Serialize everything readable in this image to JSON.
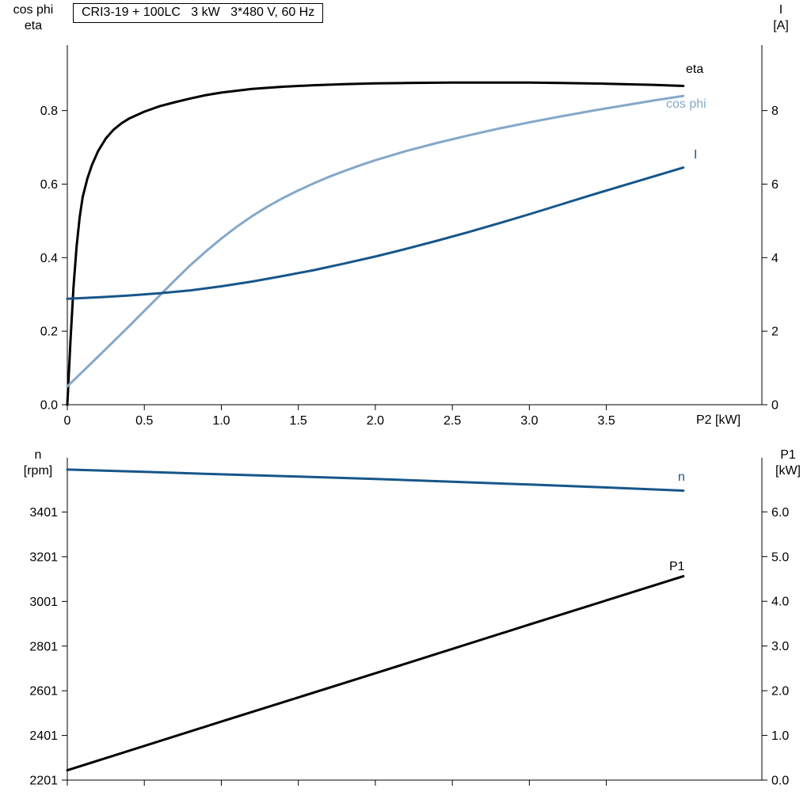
{
  "colors": {
    "black": "#000000",
    "dark_blue": "#17568a",
    "light_blue": "#85a8c9",
    "axis": "#000000",
    "background": "#ffffff"
  },
  "chart_data": [
    {
      "type": "line",
      "title": "CRI3-19 + 100LC   3 kW   3*480 V, 60 Hz",
      "x_label": "P2 [kW]",
      "x_range": [
        0,
        4.51
      ],
      "x_ticks": [
        0,
        0.5,
        1,
        1.5,
        2,
        2.5,
        3,
        3.5
      ],
      "x_tick_labels": [
        "0",
        "0.5",
        "1.0",
        "1.5",
        "2.0",
        "2.5",
        "3.0",
        "3.5"
      ],
      "grid": false,
      "legend_position": "labels-at-line-ends",
      "left_axis": {
        "label_lines": [
          "cos phi",
          "eta"
        ],
        "range": [
          0,
          0.978
        ],
        "tick_values": [
          0,
          0.2,
          0.4,
          0.6,
          0.8
        ],
        "tick_labels": [
          "0.0",
          "0.2",
          "0.4",
          "0.6",
          "0.8"
        ]
      },
      "right_axis": {
        "label_lines": [
          "I",
          "[A]"
        ],
        "range": [
          0,
          9.78
        ],
        "tick_values": [
          0,
          2,
          4,
          6,
          8
        ],
        "tick_labels": [
          "0",
          "2",
          "4",
          "6",
          "8"
        ]
      },
      "series": [
        {
          "name": "eta",
          "axis": "left",
          "color": "black",
          "points": [
            [
              0,
              0
            ],
            [
              0.02,
              0.17
            ],
            [
              0.04,
              0.32
            ],
            [
              0.06,
              0.43
            ],
            [
              0.08,
              0.51
            ],
            [
              0.1,
              0.565
            ],
            [
              0.13,
              0.615
            ],
            [
              0.16,
              0.652
            ],
            [
              0.2,
              0.69
            ],
            [
              0.25,
              0.724
            ],
            [
              0.3,
              0.748
            ],
            [
              0.35,
              0.765
            ],
            [
              0.4,
              0.778
            ],
            [
              0.5,
              0.797
            ],
            [
              0.6,
              0.812
            ],
            [
              0.7,
              0.823
            ],
            [
              0.8,
              0.833
            ],
            [
              0.9,
              0.842
            ],
            [
              1,
              0.849
            ],
            [
              1.2,
              0.859
            ],
            [
              1.4,
              0.865
            ],
            [
              1.6,
              0.869
            ],
            [
              1.8,
              0.872
            ],
            [
              2,
              0.874
            ],
            [
              2.2,
              0.875
            ],
            [
              2.5,
              0.876
            ],
            [
              2.8,
              0.876
            ],
            [
              3,
              0.876
            ],
            [
              3.2,
              0.875
            ],
            [
              3.5,
              0.873
            ],
            [
              3.8,
              0.87
            ],
            [
              4,
              0.867
            ]
          ]
        },
        {
          "name": "cos phi",
          "axis": "left",
          "color": "light_blue",
          "points": [
            [
              0,
              0.05
            ],
            [
              0.1,
              0.09
            ],
            [
              0.2,
              0.131
            ],
            [
              0.3,
              0.172
            ],
            [
              0.4,
              0.213
            ],
            [
              0.5,
              0.255
            ],
            [
              0.6,
              0.297
            ],
            [
              0.7,
              0.339
            ],
            [
              0.8,
              0.38
            ],
            [
              0.9,
              0.417
            ],
            [
              1,
              0.452
            ],
            [
              1.1,
              0.484
            ],
            [
              1.2,
              0.513
            ],
            [
              1.3,
              0.539
            ],
            [
              1.4,
              0.562
            ],
            [
              1.5,
              0.583
            ],
            [
              1.6,
              0.602
            ],
            [
              1.7,
              0.62
            ],
            [
              1.8,
              0.636
            ],
            [
              1.9,
              0.651
            ],
            [
              2,
              0.665
            ],
            [
              2.2,
              0.69
            ],
            [
              2.4,
              0.712
            ],
            [
              2.6,
              0.732
            ],
            [
              2.8,
              0.751
            ],
            [
              3,
              0.768
            ],
            [
              3.2,
              0.784
            ],
            [
              3.4,
              0.799
            ],
            [
              3.6,
              0.813
            ],
            [
              3.8,
              0.827
            ],
            [
              4,
              0.84
            ]
          ]
        },
        {
          "name": "I",
          "axis": "right",
          "color": "dark_blue",
          "points": [
            [
              0,
              2.88
            ],
            [
              0.2,
              2.92
            ],
            [
              0.4,
              2.97
            ],
            [
              0.6,
              3.03
            ],
            [
              0.8,
              3.11
            ],
            [
              1,
              3.22
            ],
            [
              1.2,
              3.35
            ],
            [
              1.4,
              3.5
            ],
            [
              1.6,
              3.66
            ],
            [
              1.8,
              3.84
            ],
            [
              2,
              4.03
            ],
            [
              2.2,
              4.24
            ],
            [
              2.4,
              4.46
            ],
            [
              2.6,
              4.69
            ],
            [
              2.8,
              4.93
            ],
            [
              3,
              5.18
            ],
            [
              3.2,
              5.44
            ],
            [
              3.4,
              5.7
            ],
            [
              3.6,
              5.95
            ],
            [
              3.8,
              6.2
            ],
            [
              4,
              6.45
            ]
          ]
        }
      ]
    },
    {
      "type": "line",
      "title": "",
      "x_label": "",
      "x_range": [
        0,
        4.51
      ],
      "x_ticks": [
        0,
        0.5,
        1,
        1.5,
        2,
        2.5,
        3,
        3.5
      ],
      "x_tick_labels": [],
      "grid": false,
      "legend_position": "labels-at-line-ends",
      "left_axis": {
        "label_lines": [
          "n",
          "[rpm]"
        ],
        "range": [
          2201,
          3644
        ],
        "tick_values": [
          2201,
          2401,
          2601,
          2801,
          3001,
          3201,
          3401
        ],
        "tick_labels": [
          "2201",
          "2401",
          "2601",
          "2801",
          "3001",
          "3201",
          "3401"
        ]
      },
      "right_axis": {
        "label_lines": [
          "P1",
          "[kW]"
        ],
        "range": [
          0,
          7.21
        ],
        "tick_values": [
          0,
          1,
          2,
          3,
          4,
          5,
          6
        ],
        "tick_labels": [
          "0.0",
          "1.0",
          "2.0",
          "3.0",
          "4.0",
          "5.0",
          "6.0"
        ]
      },
      "series": [
        {
          "name": "n",
          "axis": "left",
          "color": "dark_blue",
          "points": [
            [
              0,
              3591
            ],
            [
              0.5,
              3581
            ],
            [
              1,
              3570
            ],
            [
              1.5,
              3560
            ],
            [
              2,
              3549
            ],
            [
              2.5,
              3537
            ],
            [
              3,
              3524
            ],
            [
              3.5,
              3511
            ],
            [
              4,
              3497
            ]
          ]
        },
        {
          "name": "P1",
          "axis": "right",
          "color": "black",
          "points": [
            [
              0,
              0.22
            ],
            [
              1,
              1.31
            ],
            [
              2,
              2.39
            ],
            [
              3,
              3.48
            ],
            [
              4,
              4.56
            ]
          ]
        }
      ]
    }
  ]
}
